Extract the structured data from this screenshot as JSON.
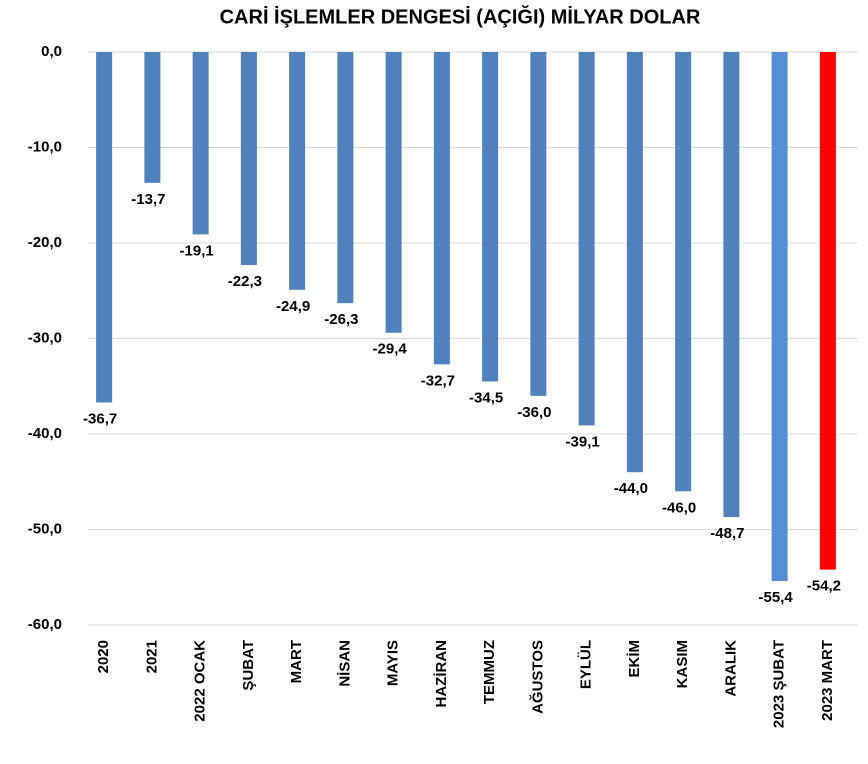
{
  "chart_data": {
    "type": "bar",
    "title": "CARİ İŞLEMLER DENGESİ (AÇIĞI) MİLYAR DOLAR",
    "categories": [
      "2020",
      "2021",
      "2022 OCAK",
      "ŞUBAT",
      "MART",
      "NİSAN",
      "MAYIS",
      "HAZİRAN",
      "TEMMUZ",
      "AĞUSTOS",
      "EYLÜL",
      "EKİM",
      "KASIM",
      "ARALIK",
      "2023 ŞUBAT",
      "2023 MART"
    ],
    "values": [
      -36.7,
      -13.7,
      -19.1,
      -22.3,
      -24.9,
      -26.3,
      -29.4,
      -32.7,
      -34.5,
      -36.0,
      -39.1,
      -44.0,
      -46.0,
      -48.7,
      -55.4,
      -54.2
    ],
    "value_labels": [
      "-36,7",
      "-13,7",
      "-19,1",
      "-22,3",
      "-24,9",
      "-26,3",
      "-29,4",
      "-32,7",
      "-34,5",
      "-36,0",
      "-39,1",
      "-44,0",
      "-46,0",
      "-48,7",
      "-55,4",
      "-54,2"
    ],
    "colors": [
      "#4f81bd",
      "#4f81bd",
      "#4f81bd",
      "#4f81bd",
      "#4f81bd",
      "#4f81bd",
      "#4f81bd",
      "#4f81bd",
      "#4f81bd",
      "#4f81bd",
      "#4f81bd",
      "#4f81bd",
      "#4f81bd",
      "#4f81bd",
      "#558ed5",
      "#ff0000"
    ],
    "ylim": [
      -60,
      0
    ],
    "yticks": [
      {
        "value": 0,
        "label": "0,0"
      },
      {
        "value": -10,
        "label": "-10,0"
      },
      {
        "value": -20,
        "label": "-20,0"
      },
      {
        "value": -30,
        "label": "-30,0"
      },
      {
        "value": -40,
        "label": "-40,0"
      },
      {
        "value": -50,
        "label": "-50,0"
      },
      {
        "value": -60,
        "label": "-60,0"
      }
    ],
    "grid": true
  }
}
